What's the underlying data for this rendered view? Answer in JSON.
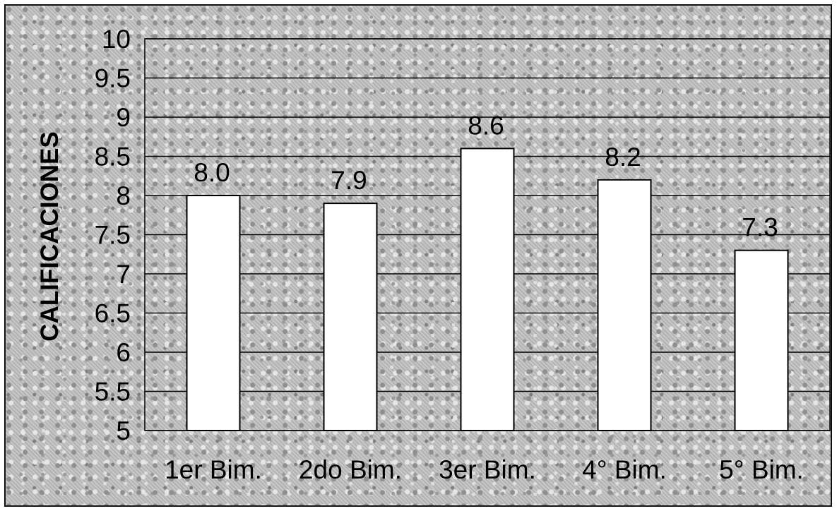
{
  "chart_data": {
    "type": "bar",
    "title": "",
    "xlabel": "",
    "ylabel": "CALIFICACIONES",
    "categories": [
      "1er Bim.",
      "2do Bim.",
      "3er Bim.",
      "4° Bim.",
      "5° Bim."
    ],
    "values": [
      8.0,
      7.9,
      8.6,
      8.2,
      7.3
    ],
    "data_labels": [
      "8.0",
      "7.9",
      "8.6",
      "8.2",
      "7.3"
    ],
    "ylim": [
      5,
      10
    ],
    "y_ticks": [
      "10",
      "9.5",
      "9",
      "8.5",
      "8",
      "7.5",
      "7",
      "6.5",
      "6",
      "5.5",
      "5"
    ],
    "grid": true,
    "legend": "none",
    "colors": {
      "bar_fill": "#ffffff",
      "bar_stroke": "#000000",
      "gridline": "#000000",
      "background": "#bdbdbd",
      "text": "#000000"
    }
  }
}
